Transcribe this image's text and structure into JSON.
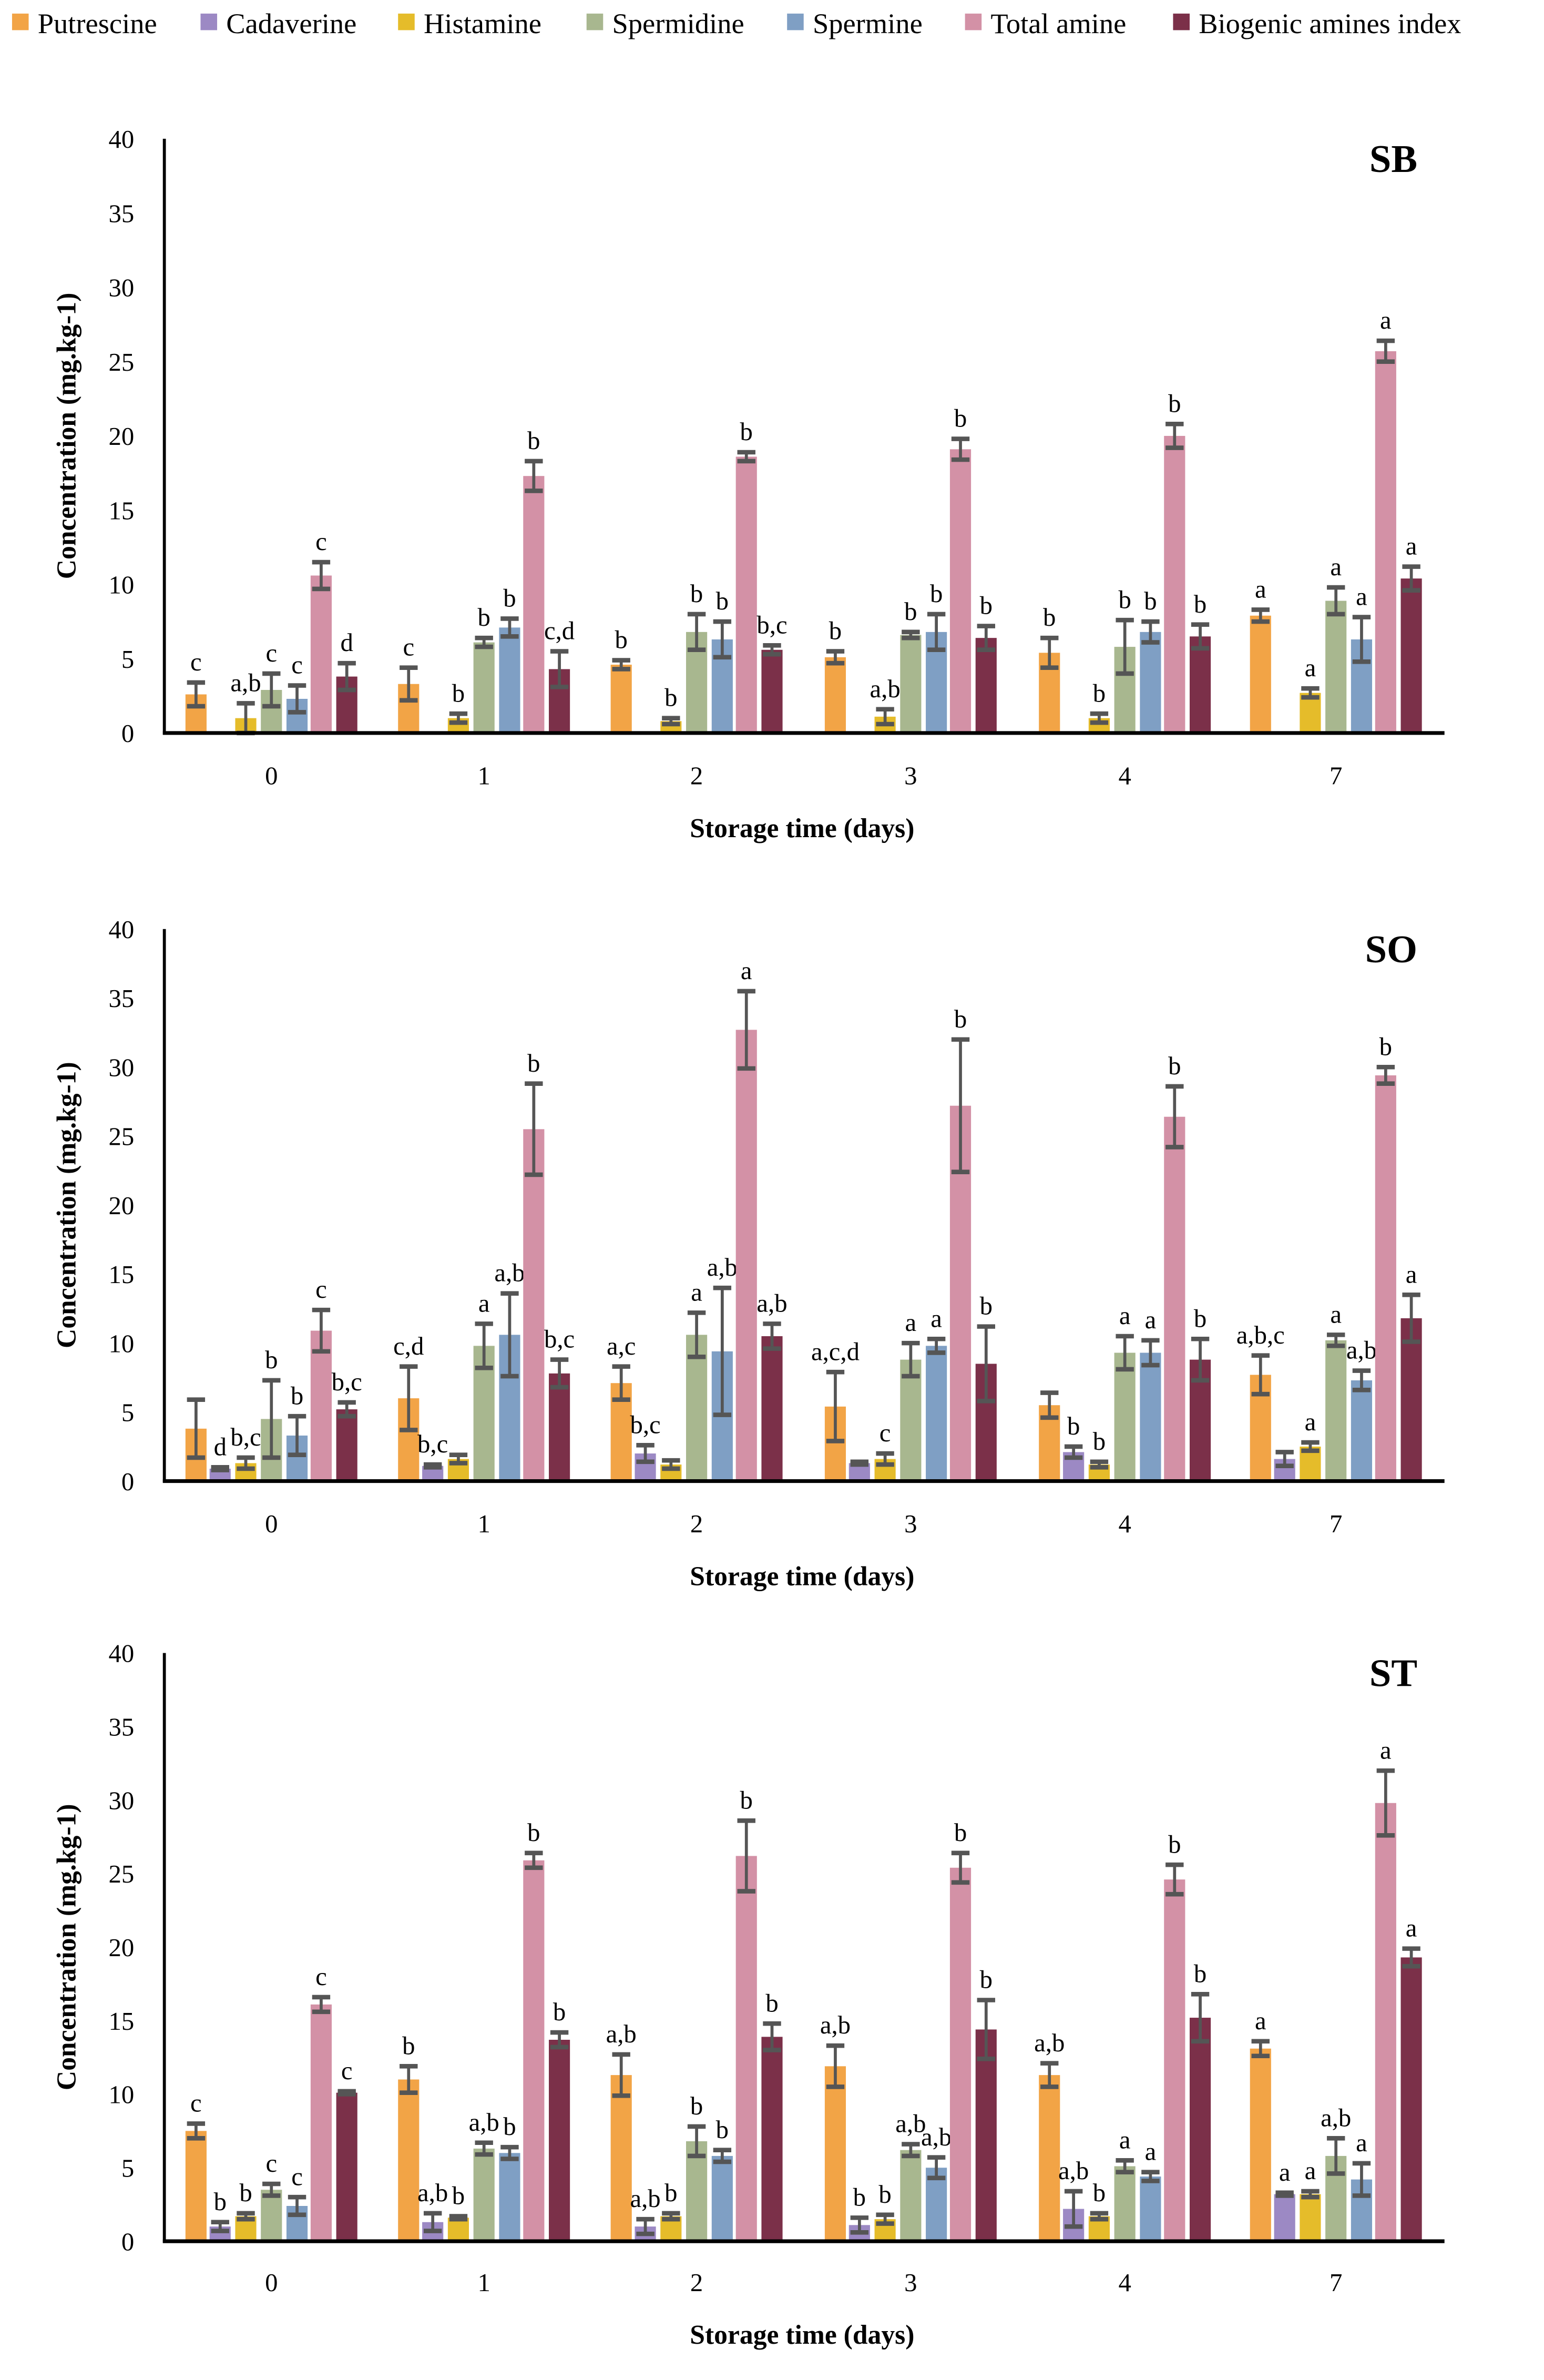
{
  "legend": [
    "Putrescine",
    "Cadaverine",
    "Histamine",
    "Spermidine",
    "Spermine",
    "Total amine",
    "Biogenic amines index"
  ],
  "colors": [
    "#F2A446",
    "#9C89C4",
    "#E5BC2A",
    "#A8B78F",
    "#7F9FC4",
    "#D391A6",
    "#7B3049"
  ],
  "chart_data": [
    {
      "type": "bar",
      "title": "SB",
      "xlabel": "Storage time (days)",
      "ylabel": "Concentration (mg.kg-1)",
      "ylim": [
        0,
        40
      ],
      "yticks": [
        0,
        5,
        10,
        15,
        20,
        25,
        30,
        35,
        40
      ],
      "categories": [
        "0",
        "1",
        "2",
        "3",
        "4",
        "7"
      ],
      "series": [
        {
          "name": "Putrescine",
          "values": [
            2.6,
            3.3,
            4.6,
            5.1,
            5.4,
            7.9
          ],
          "err": [
            0.8,
            1.1,
            0.3,
            0.4,
            1.0,
            0.4
          ],
          "labels": [
            "c",
            "c",
            "b",
            "b",
            "b",
            "a"
          ]
        },
        {
          "name": "Cadaverine",
          "values": [
            null,
            null,
            null,
            null,
            null,
            null
          ],
          "err": [
            0,
            0,
            0,
            0,
            0,
            0
          ],
          "labels": [
            "",
            "",
            "",
            "",
            "",
            ""
          ]
        },
        {
          "name": "Histamine",
          "values": [
            1.0,
            1.0,
            0.8,
            1.1,
            1.0,
            2.7
          ],
          "err": [
            1.0,
            0.3,
            0.2,
            0.5,
            0.3,
            0.3
          ],
          "labels": [
            "a,b",
            "b",
            "b",
            "a,b",
            "b",
            "a"
          ]
        },
        {
          "name": "Spermidine",
          "values": [
            2.9,
            6.1,
            6.8,
            6.6,
            5.8,
            8.9
          ],
          "err": [
            1.1,
            0.3,
            1.2,
            0.2,
            1.8,
            0.9
          ],
          "labels": [
            "c",
            "b",
            "b",
            "b",
            "b",
            "a"
          ]
        },
        {
          "name": "Spermine",
          "values": [
            2.3,
            7.1,
            6.3,
            6.8,
            6.8,
            6.3
          ],
          "err": [
            0.9,
            0.6,
            1.2,
            1.2,
            0.7,
            1.5
          ],
          "labels": [
            "c",
            "b",
            "b",
            "b",
            "b",
            "a"
          ]
        },
        {
          "name": "Total amine",
          "values": [
            10.6,
            17.3,
            18.6,
            19.1,
            20.0,
            25.7
          ],
          "err": [
            0.9,
            1.0,
            0.3,
            0.7,
            0.8,
            0.7
          ],
          "labels": [
            "c",
            "b",
            "b",
            "b",
            "b",
            "a"
          ]
        },
        {
          "name": "Biogenic amines index",
          "values": [
            3.8,
            4.3,
            5.6,
            6.4,
            6.5,
            10.4
          ],
          "err": [
            0.9,
            1.2,
            0.3,
            0.8,
            0.8,
            0.8
          ],
          "labels": [
            "d",
            "c,d",
            "b,c",
            "b",
            "b",
            "a"
          ]
        }
      ]
    },
    {
      "type": "bar",
      "title": "SO",
      "xlabel": "Storage time (days)",
      "ylabel": "Concentration (mg.kg-1)",
      "ylim": [
        0,
        40
      ],
      "yticks": [
        0,
        5,
        10,
        15,
        20,
        25,
        30,
        35,
        40
      ],
      "categories": [
        "0",
        "1",
        "2",
        "3",
        "4",
        "7"
      ],
      "series": [
        {
          "name": "Putrescine",
          "values": [
            3.8,
            6.0,
            7.1,
            5.4,
            5.5,
            7.7
          ],
          "err": [
            2.1,
            2.3,
            1.2,
            2.5,
            0.9,
            1.4
          ],
          "labels": [
            "",
            "c,d",
            "a,c",
            "a,c,d",
            "",
            "a,b,c"
          ]
        },
        {
          "name": "Cadaverine",
          "values": [
            0.9,
            1.1,
            2.0,
            1.3,
            2.1,
            1.6
          ],
          "err": [
            0.1,
            0.1,
            0.6,
            0.1,
            0.4,
            0.5
          ],
          "labels": [
            "d",
            "b,c",
            "b,c",
            "",
            "b",
            ""
          ]
        },
        {
          "name": "Histamine",
          "values": [
            1.3,
            1.6,
            1.2,
            1.6,
            1.2,
            2.5
          ],
          "err": [
            0.4,
            0.3,
            0.3,
            0.4,
            0.2,
            0.3
          ],
          "labels": [
            "b,c",
            "",
            "",
            "c",
            "b",
            "a"
          ]
        },
        {
          "name": "Spermidine",
          "values": [
            4.5,
            9.8,
            10.6,
            8.8,
            9.3,
            10.2
          ],
          "err": [
            2.8,
            1.6,
            1.6,
            1.2,
            1.2,
            0.4
          ],
          "labels": [
            "b",
            "a",
            "a",
            "a",
            "a",
            "a"
          ]
        },
        {
          "name": "Spermine",
          "values": [
            3.3,
            10.6,
            9.4,
            9.8,
            9.3,
            7.3
          ],
          "err": [
            1.4,
            3.0,
            4.6,
            0.5,
            0.9,
            0.7
          ],
          "labels": [
            "b",
            "a,b",
            "a,b",
            "a",
            "a",
            "a,b"
          ]
        },
        {
          "name": "Total amine",
          "values": [
            10.9,
            25.5,
            32.7,
            27.2,
            26.4,
            29.4
          ],
          "err": [
            1.5,
            3.3,
            2.8,
            4.8,
            2.2,
            0.6
          ],
          "labels": [
            "c",
            "b",
            "a",
            "b",
            "b",
            "b"
          ]
        },
        {
          "name": "Biogenic amines index",
          "values": [
            5.2,
            7.8,
            10.5,
            8.5,
            8.8,
            11.8
          ],
          "err": [
            0.5,
            1.0,
            0.9,
            2.7,
            1.5,
            1.7
          ],
          "labels": [
            "b,c",
            "b,c",
            "a,b",
            "b",
            "b",
            "a"
          ]
        }
      ]
    },
    {
      "type": "bar",
      "title": "ST",
      "xlabel": "Storage time (days)",
      "ylabel": "Concentration (mg.kg-1)",
      "ylim": [
        0,
        40
      ],
      "yticks": [
        0,
        5,
        10,
        15,
        20,
        25,
        30,
        35,
        40
      ],
      "categories": [
        "0",
        "1",
        "2",
        "3",
        "4",
        "7"
      ],
      "series": [
        {
          "name": "Putrescine",
          "values": [
            7.5,
            11.0,
            11.3,
            11.9,
            11.3,
            13.1
          ],
          "err": [
            0.5,
            0.9,
            1.4,
            1.4,
            0.8,
            0.5
          ],
          "labels": [
            "c",
            "b",
            "a,b",
            "a,b",
            "a,b",
            "a"
          ]
        },
        {
          "name": "Cadaverine",
          "values": [
            1.0,
            1.3,
            1.0,
            1.1,
            2.2,
            3.2
          ],
          "err": [
            0.3,
            0.6,
            0.5,
            0.5,
            1.2,
            0.1
          ],
          "labels": [
            "b",
            "a,b",
            "a,b",
            "b",
            "a,b",
            "a"
          ]
        },
        {
          "name": "Histamine",
          "values": [
            1.7,
            1.6,
            1.7,
            1.5,
            1.7,
            3.2
          ],
          "err": [
            0.2,
            0.1,
            0.2,
            0.3,
            0.2,
            0.2
          ],
          "labels": [
            "b",
            "b",
            "b",
            "b",
            "b",
            "a"
          ]
        },
        {
          "name": "Spermidine",
          "values": [
            3.5,
            6.3,
            6.8,
            6.2,
            5.1,
            5.8
          ],
          "err": [
            0.4,
            0.4,
            1.0,
            0.4,
            0.4,
            1.2
          ],
          "labels": [
            "c",
            "a,b",
            "b",
            "a,b",
            "a",
            "a,b"
          ]
        },
        {
          "name": "Spermine",
          "values": [
            2.4,
            6.0,
            5.8,
            5.0,
            4.4,
            4.2
          ],
          "err": [
            0.6,
            0.4,
            0.4,
            0.7,
            0.3,
            1.1
          ],
          "labels": [
            "c",
            "b",
            "b",
            "a,b",
            "a",
            "a"
          ]
        },
        {
          "name": "Total amine",
          "values": [
            16.1,
            25.9,
            26.2,
            25.4,
            24.6,
            29.8
          ],
          "err": [
            0.5,
            0.5,
            2.4,
            1.0,
            1.0,
            2.2
          ],
          "labels": [
            "c",
            "b",
            "b",
            "b",
            "b",
            "a"
          ]
        },
        {
          "name": "Biogenic amines index",
          "values": [
            10.1,
            13.7,
            13.9,
            14.4,
            15.2,
            19.3
          ],
          "err": [
            0.1,
            0.5,
            0.9,
            2.0,
            1.6,
            0.6
          ],
          "labels": [
            "c",
            "b",
            "b",
            "b",
            "b",
            "a"
          ]
        }
      ]
    }
  ]
}
